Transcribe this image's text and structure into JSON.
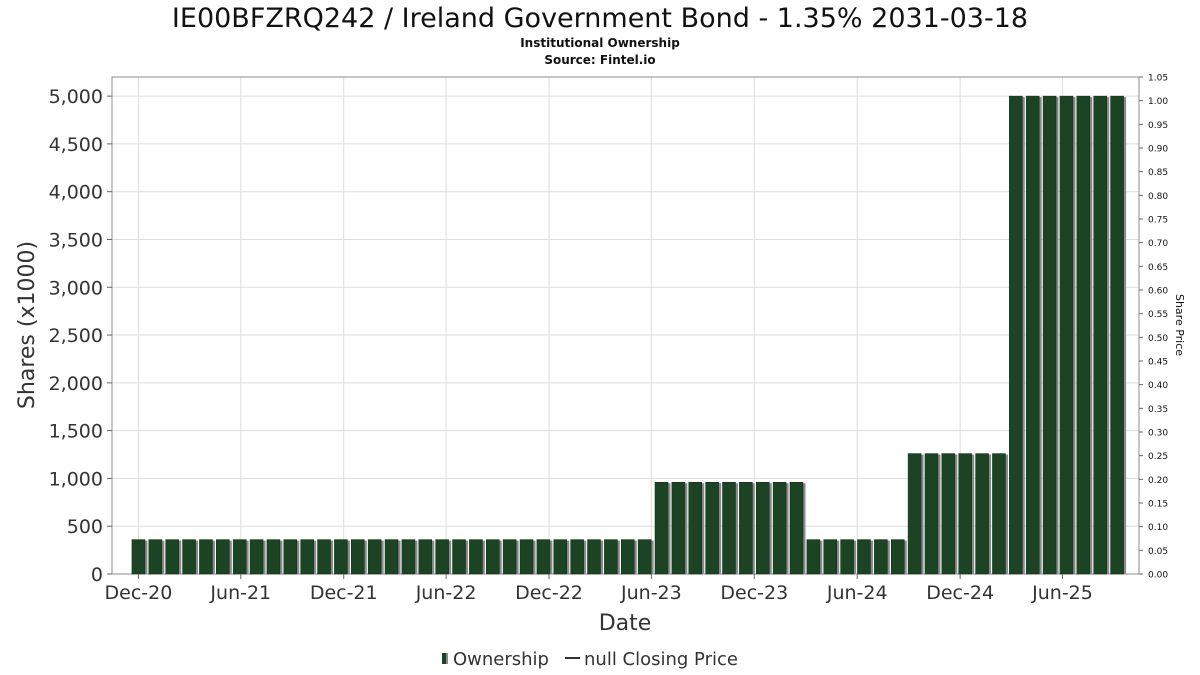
{
  "chart_data": {
    "type": "bar",
    "title": "IE00BFZRQ242 / Ireland Government Bond - 1.35% 2031-03-18",
    "subtitle": "Institutional Ownership",
    "source": "Source: Fintel.io",
    "xlabel": "Date",
    "ylabel": "Shares (x1000)",
    "y2label": "Share Price",
    "ylim": [
      0,
      5200
    ],
    "y2lim": [
      0,
      1.05
    ],
    "grid": true,
    "legend_position": "bottom",
    "legend": {
      "ownership": "Ownership",
      "closing_price": "null Closing Price"
    },
    "colors": {
      "bar": "#1c4424",
      "bar_shadow": "#8a8a8a",
      "grid": "#dddddd"
    },
    "y_ticks": [
      0,
      500,
      1000,
      1500,
      2000,
      2500,
      3000,
      3500,
      4000,
      4500,
      5000
    ],
    "y_tick_labels": [
      "0",
      "500",
      "1,000",
      "1,500",
      "2,000",
      "2,500",
      "3,000",
      "3,500",
      "4,000",
      "4,500",
      "5,000"
    ],
    "y2_ticks": [
      0,
      0.05,
      0.1,
      0.15,
      0.2,
      0.25,
      0.3,
      0.35,
      0.4,
      0.45,
      0.5,
      0.55,
      0.6,
      0.65,
      0.7,
      0.75,
      0.8,
      0.85,
      0.9,
      0.95,
      1.0,
      1.05
    ],
    "y2_tick_labels": [
      "0.00",
      "0.05",
      "0.10",
      "0.15",
      "0.20",
      "0.25",
      "0.30",
      "0.35",
      "0.40",
      "0.45",
      "0.50",
      "0.55",
      "0.60",
      "0.65",
      "0.70",
      "0.75",
      "0.80",
      "0.85",
      "0.90",
      "0.95",
      "1.00",
      "1.05"
    ],
    "x_range": [
      "2020-10-15",
      "2025-10-15"
    ],
    "x_ticks": [
      {
        "date": "2020-12-01",
        "label": "Dec-20"
      },
      {
        "date": "2021-06-01",
        "label": "Jun-21"
      },
      {
        "date": "2021-12-01",
        "label": "Dec-21"
      },
      {
        "date": "2022-06-01",
        "label": "Jun-22"
      },
      {
        "date": "2022-12-01",
        "label": "Dec-22"
      },
      {
        "date": "2023-06-01",
        "label": "Jun-23"
      },
      {
        "date": "2023-12-01",
        "label": "Dec-23"
      },
      {
        "date": "2024-06-01",
        "label": "Jun-24"
      },
      {
        "date": "2024-12-01",
        "label": "Dec-24"
      },
      {
        "date": "2025-06-01",
        "label": "Jun-25"
      }
    ],
    "series": [
      {
        "name": "Ownership",
        "points": [
          {
            "x": "2020-12-01",
            "y": 360
          },
          {
            "x": "2020-12-31",
            "y": 360
          },
          {
            "x": "2021-01-30",
            "y": 360
          },
          {
            "x": "2021-03-01",
            "y": 360
          },
          {
            "x": "2021-03-31",
            "y": 360
          },
          {
            "x": "2021-04-30",
            "y": 360
          },
          {
            "x": "2021-05-30",
            "y": 360
          },
          {
            "x": "2021-06-29",
            "y": 360
          },
          {
            "x": "2021-07-29",
            "y": 360
          },
          {
            "x": "2021-08-28",
            "y": 360
          },
          {
            "x": "2021-09-27",
            "y": 360
          },
          {
            "x": "2021-10-27",
            "y": 360
          },
          {
            "x": "2021-11-26",
            "y": 360
          },
          {
            "x": "2021-12-26",
            "y": 360
          },
          {
            "x": "2022-01-25",
            "y": 360
          },
          {
            "x": "2022-02-24",
            "y": 360
          },
          {
            "x": "2022-03-26",
            "y": 360
          },
          {
            "x": "2022-04-25",
            "y": 360
          },
          {
            "x": "2022-05-25",
            "y": 360
          },
          {
            "x": "2022-06-24",
            "y": 360
          },
          {
            "x": "2022-07-24",
            "y": 360
          },
          {
            "x": "2022-08-23",
            "y": 360
          },
          {
            "x": "2022-09-22",
            "y": 360
          },
          {
            "x": "2022-10-22",
            "y": 360
          },
          {
            "x": "2022-11-21",
            "y": 360
          },
          {
            "x": "2022-12-21",
            "y": 360
          },
          {
            "x": "2023-01-20",
            "y": 360
          },
          {
            "x": "2023-02-19",
            "y": 360
          },
          {
            "x": "2023-03-21",
            "y": 360
          },
          {
            "x": "2023-04-20",
            "y": 360
          },
          {
            "x": "2023-05-20",
            "y": 360
          },
          {
            "x": "2023-06-19",
            "y": 960
          },
          {
            "x": "2023-07-19",
            "y": 960
          },
          {
            "x": "2023-08-18",
            "y": 960
          },
          {
            "x": "2023-09-17",
            "y": 960
          },
          {
            "x": "2023-10-17",
            "y": 960
          },
          {
            "x": "2023-11-16",
            "y": 960
          },
          {
            "x": "2023-12-16",
            "y": 960
          },
          {
            "x": "2024-01-15",
            "y": 960
          },
          {
            "x": "2024-02-14",
            "y": 960
          },
          {
            "x": "2024-03-15",
            "y": 360
          },
          {
            "x": "2024-04-14",
            "y": 360
          },
          {
            "x": "2024-05-14",
            "y": 360
          },
          {
            "x": "2024-06-13",
            "y": 360
          },
          {
            "x": "2024-07-13",
            "y": 360
          },
          {
            "x": "2024-08-12",
            "y": 360
          },
          {
            "x": "2024-09-11",
            "y": 1260
          },
          {
            "x": "2024-10-11",
            "y": 1260
          },
          {
            "x": "2024-11-10",
            "y": 1260
          },
          {
            "x": "2024-12-10",
            "y": 1260
          },
          {
            "x": "2025-01-09",
            "y": 1260
          },
          {
            "x": "2025-02-08",
            "y": 1260
          },
          {
            "x": "2025-03-10",
            "y": 5000
          },
          {
            "x": "2025-04-09",
            "y": 5000
          },
          {
            "x": "2025-05-09",
            "y": 5000
          },
          {
            "x": "2025-06-08",
            "y": 5000
          },
          {
            "x": "2025-07-08",
            "y": 5000
          },
          {
            "x": "2025-08-07",
            "y": 5000
          },
          {
            "x": "2025-09-06",
            "y": 5000
          }
        ]
      }
    ]
  }
}
